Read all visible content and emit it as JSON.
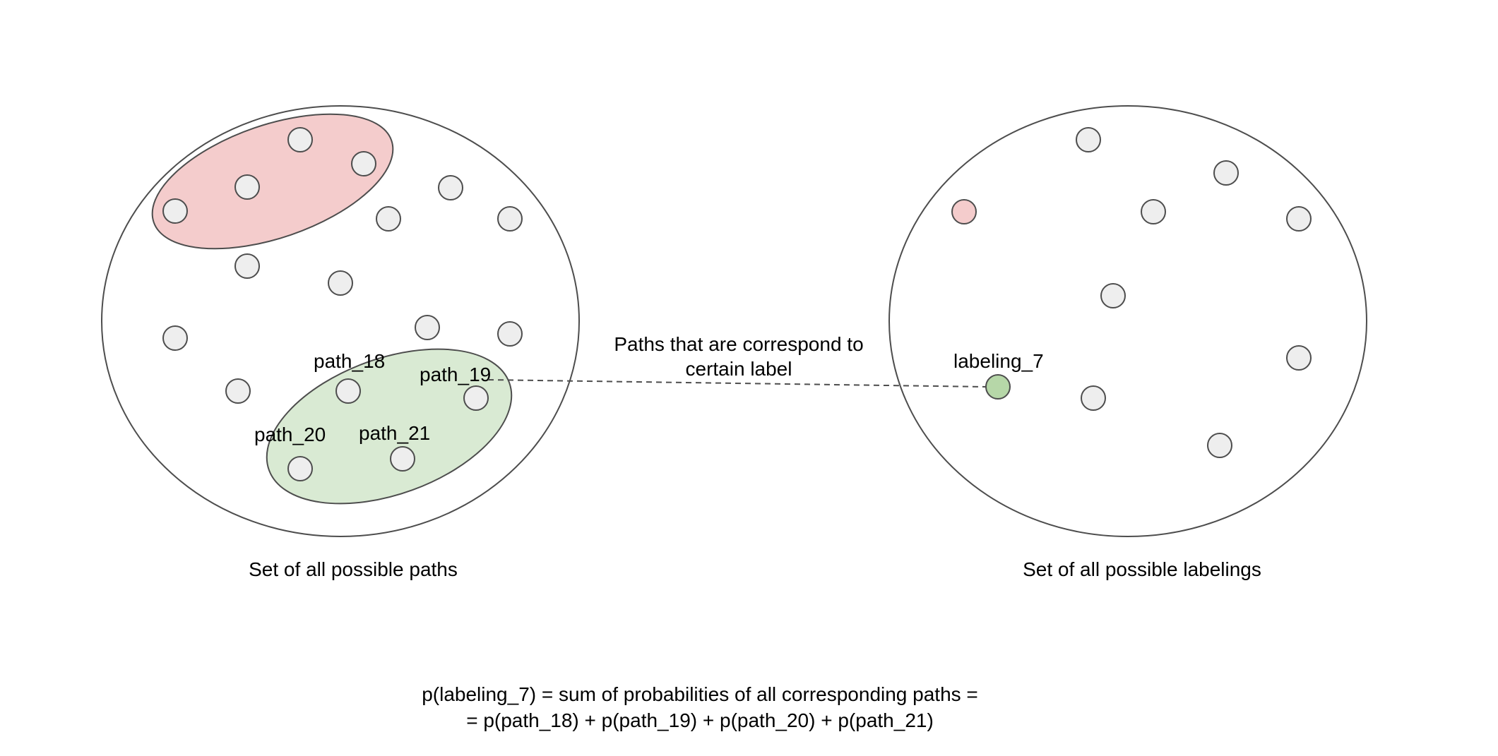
{
  "colors": {
    "background": "#ffffff",
    "outline": "#4d4d4d",
    "node_fill": "#eeeeee",
    "red_fill": "#f4cccc",
    "green_fill": "#d9ead3",
    "green_node_fill": "#b6d7a8",
    "text": "#000000"
  },
  "paths_set": {
    "caption": "Set of all possible paths",
    "labels": {
      "path_18": "path_18",
      "path_19": "path_19",
      "path_20": "path_20",
      "path_21": "path_21"
    }
  },
  "labelings_set": {
    "caption": "Set of all possible labelings",
    "label_labeling_7": "labeling_7"
  },
  "connector": {
    "line1": "Paths that are correspond to",
    "line2": "certain label"
  },
  "formula": {
    "line1": "p(labeling_7) = sum of probabilities of all corresponding paths =",
    "line2": "= p(path_18) + p(path_19) + p(path_20) + p(path_21)"
  }
}
